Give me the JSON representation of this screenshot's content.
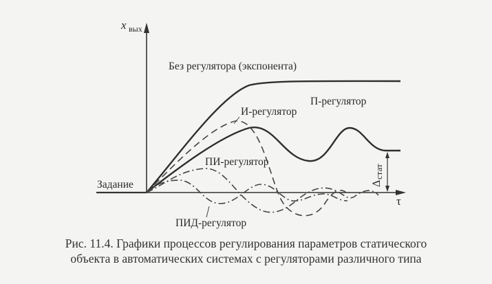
{
  "axes": {
    "y_label": "x",
    "y_label_sub": "вых",
    "x_label": "τ"
  },
  "labels": {
    "no_regulator": "Без регулятора (экспонента)",
    "i_regulator": "И-регулятор",
    "p_regulator": "П-регулятор",
    "pi_regulator": "ПИ-регулятор",
    "pid_regulator": "ПИД-регулятор",
    "setpoint": "Задание",
    "delta": "Δ",
    "delta_sub": "стат"
  },
  "caption": {
    "line1": "Рис. 11.4. Графики процессов регулирования параметров статического",
    "line2": "объекта в автоматических системах с регуляторами различного типа"
  }
}
